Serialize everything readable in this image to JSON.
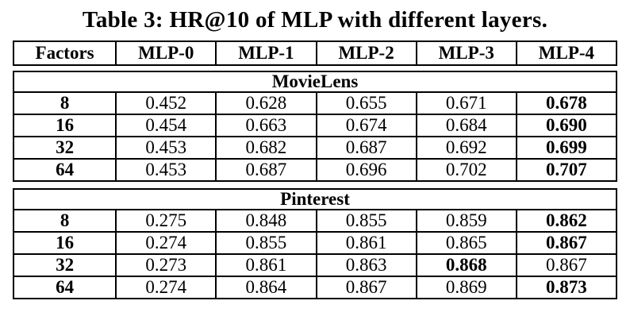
{
  "title": "Table 3: HR@10 of MLP with different layers.",
  "table": {
    "columns": [
      "Factors",
      "MLP-0",
      "MLP-1",
      "MLP-2",
      "MLP-3",
      "MLP-4"
    ],
    "sections": [
      {
        "name": "MovieLens",
        "rows": [
          {
            "factor": "8",
            "values": [
              "0.452",
              "0.628",
              "0.655",
              "0.671",
              "0.678"
            ],
            "bold_value_index": 4
          },
          {
            "factor": "16",
            "values": [
              "0.454",
              "0.663",
              "0.674",
              "0.684",
              "0.690"
            ],
            "bold_value_index": 4
          },
          {
            "factor": "32",
            "values": [
              "0.453",
              "0.682",
              "0.687",
              "0.692",
              "0.699"
            ],
            "bold_value_index": 4
          },
          {
            "factor": "64",
            "values": [
              "0.453",
              "0.687",
              "0.696",
              "0.702",
              "0.707"
            ],
            "bold_value_index": 4
          }
        ]
      },
      {
        "name": "Pinterest",
        "rows": [
          {
            "factor": "8",
            "values": [
              "0.275",
              "0.848",
              "0.855",
              "0.859",
              "0.862"
            ],
            "bold_value_index": 4
          },
          {
            "factor": "16",
            "values": [
              "0.274",
              "0.855",
              "0.861",
              "0.865",
              "0.867"
            ],
            "bold_value_index": 4
          },
          {
            "factor": "32",
            "values": [
              "0.273",
              "0.861",
              "0.863",
              "0.868",
              "0.867"
            ],
            "bold_value_index": 3
          },
          {
            "factor": "64",
            "values": [
              "0.274",
              "0.864",
              "0.867",
              "0.869",
              "0.873"
            ],
            "bold_value_index": 4
          }
        ]
      }
    ]
  },
  "colors": {
    "text": "#000000",
    "background": "#ffffff",
    "border": "#000000"
  }
}
